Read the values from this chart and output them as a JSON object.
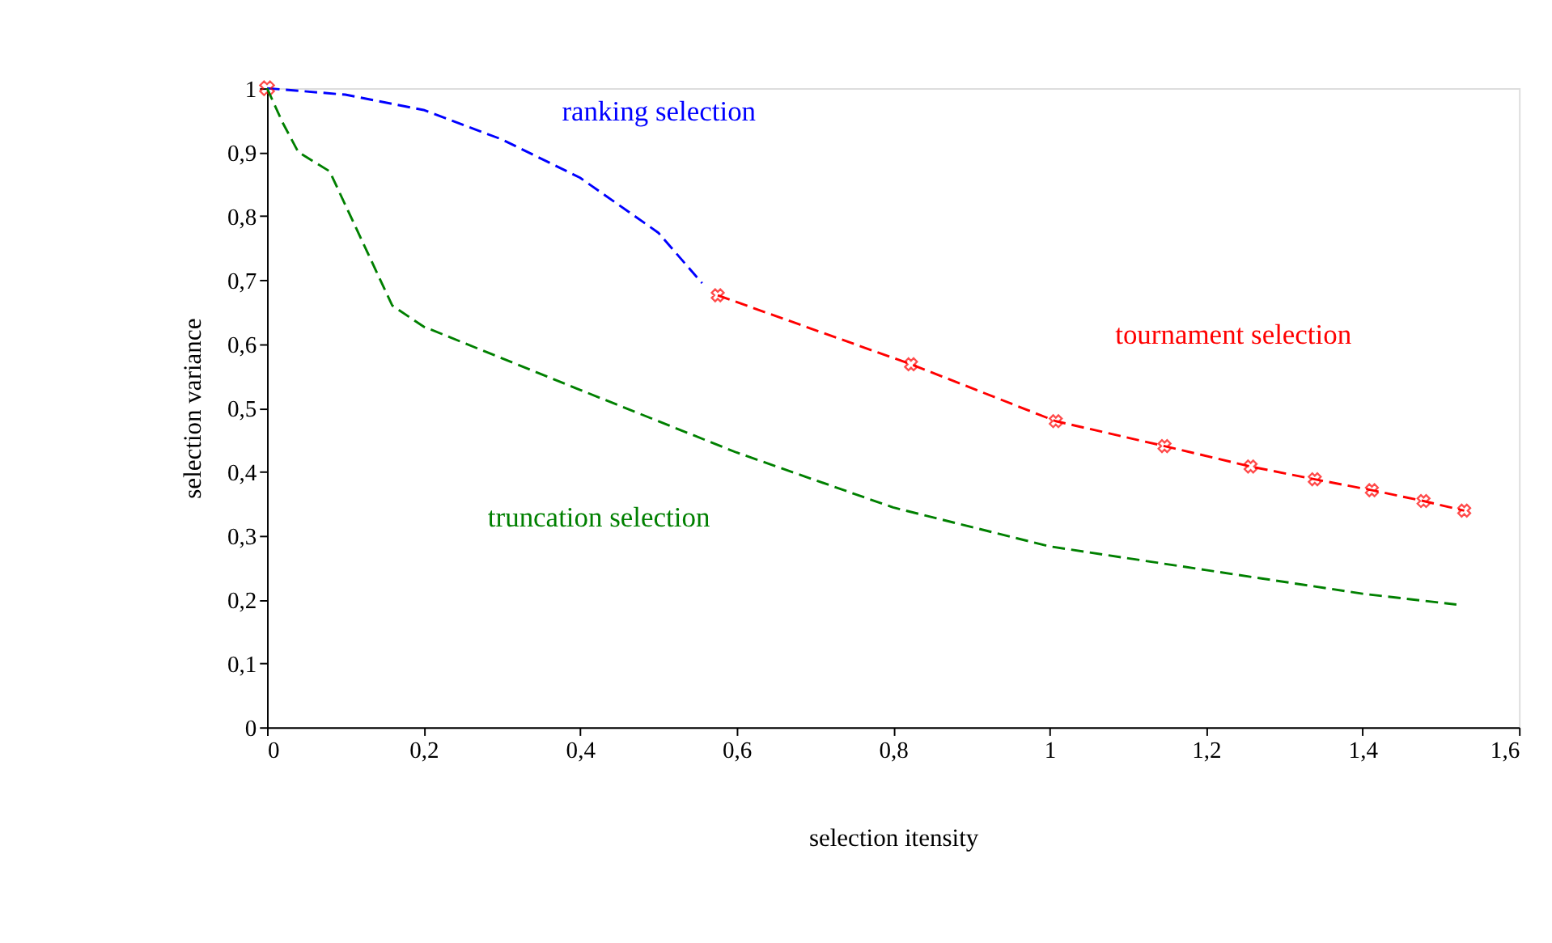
{
  "chart_data": {
    "type": "line",
    "xlabel": "selection itensity",
    "ylabel": "selection variance",
    "xlim": [
      0,
      1.6
    ],
    "ylim": [
      0,
      1
    ],
    "xticks": [
      0,
      {
        "value": 0.2,
        "label": "0,2"
      },
      {
        "value": 0.4,
        "label": "0,4"
      },
      {
        "value": 0.6,
        "label": "0,6"
      },
      {
        "value": 0.8,
        "label": "0,8"
      },
      1,
      {
        "value": 1.2,
        "label": "1,2"
      },
      {
        "value": 1.4,
        "label": "1,4"
      },
      {
        "value": 1.6,
        "label": "1,6"
      }
    ],
    "yticks": [
      0,
      {
        "value": 0.1,
        "label": "0,1"
      },
      {
        "value": 0.2,
        "label": "0,2"
      },
      {
        "value": 0.3,
        "label": "0,3"
      },
      {
        "value": 0.4,
        "label": "0,4"
      },
      {
        "value": 0.5,
        "label": "0,5"
      },
      {
        "value": 0.6,
        "label": "0,6"
      },
      {
        "value": 0.7,
        "label": "0,7"
      },
      {
        "value": 0.8,
        "label": "0,8"
      },
      {
        "value": 0.9,
        "label": "0,9"
      },
      1
    ],
    "grid": false,
    "legend": false,
    "series": [
      {
        "name": "ranking selection",
        "color": "#0000ff",
        "line_style": "dashed",
        "marker": "none",
        "x": [
          0,
          0.1,
          0.2,
          0.3,
          0.4,
          0.5,
          0.556
        ],
        "values": [
          1,
          0.99,
          0.966,
          0.92,
          0.86,
          0.774,
          0.695
        ]
      },
      {
        "name": "tournament selection",
        "color": "#ff0000",
        "line_style": "dashed",
        "marker": "cross",
        "x": [
          0.576,
          0.823,
          1.008,
          1.147,
          1.257,
          1.339,
          1.412,
          1.478,
          1.53
        ],
        "values": [
          0.676,
          0.568,
          0.479,
          0.44,
          0.408,
          0.388,
          0.371,
          0.354,
          0.339
        ]
      },
      {
        "type": "scatter",
        "color": "#ff0000",
        "marker": "cross",
        "x": [
          0
        ],
        "values": [
          1
        ]
      },
      {
        "name": "truncation selection",
        "color": "#008000",
        "line_style": "dashed",
        "marker": "none",
        "x": [
          0,
          0.02,
          0.04,
          0.08,
          0.16,
          0.2,
          0.4,
          0.6,
          0.8,
          1.0,
          1.2,
          1.4,
          1.52
        ],
        "values": [
          1,
          0.946,
          0.9,
          0.87,
          0.66,
          0.627,
          0.528,
          0.43,
          0.344,
          0.283,
          0.246,
          0.209,
          0.192
        ]
      }
    ]
  }
}
